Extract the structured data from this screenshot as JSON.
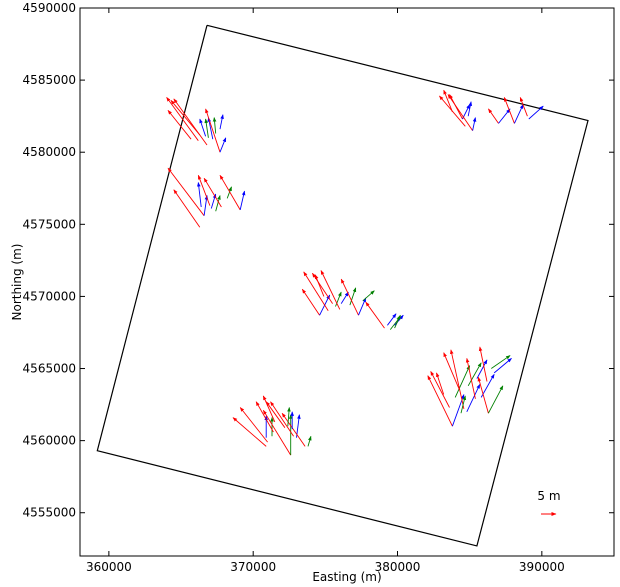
{
  "chart_data": {
    "type": "quiver",
    "xlabel": "Easting (m)",
    "ylabel": "Northing (m)",
    "xlim": [
      358000,
      395000
    ],
    "ylim": [
      4552000,
      4590000
    ],
    "xticks": [
      360000,
      370000,
      380000,
      390000
    ],
    "xtick_labels": [
      "360000",
      "370000",
      "380000",
      "390000"
    ],
    "yticks": [
      4555000,
      4560000,
      4565000,
      4570000,
      4575000,
      4580000,
      4585000,
      4590000
    ],
    "ytick_labels": [
      "4555000",
      "4560000",
      "4565000",
      "4570000",
      "4575000",
      "4580000",
      "4585000",
      "4590000"
    ],
    "grid": false,
    "boundary": {
      "x": [
        366800,
        393200,
        385500,
        359200,
        366800
      ],
      "y": [
        4588800,
        4582200,
        4552700,
        4559300,
        4588800
      ],
      "color": "#000000"
    },
    "scale_key": {
      "label": "5 m",
      "color": "#ff0000"
    },
    "colors": {
      "red": "#ff0000",
      "green": "#008000",
      "blue": "#0000ff"
    },
    "arrows": [
      {
        "x": 366800,
        "y": 4580500,
        "u": -2300,
        "v": 3200,
        "c": "red"
      },
      {
        "x": 366200,
        "y": 4580800,
        "u": -2200,
        "v": 3000,
        "c": "red"
      },
      {
        "x": 365700,
        "y": 4580900,
        "u": -1600,
        "v": 2000,
        "c": "red"
      },
      {
        "x": 366300,
        "y": 4581200,
        "u": -2000,
        "v": 2400,
        "c": "red"
      },
      {
        "x": 366700,
        "y": 4581100,
        "u": -400,
        "v": 1200,
        "c": "blue"
      },
      {
        "x": 366900,
        "y": 4581000,
        "u": -200,
        "v": 1300,
        "c": "green"
      },
      {
        "x": 367200,
        "y": 4580900,
        "u": -300,
        "v": 1500,
        "c": "blue"
      },
      {
        "x": 367400,
        "y": 4581300,
        "u": -100,
        "v": 1100,
        "c": "green"
      },
      {
        "x": 367700,
        "y": 4580000,
        "u": -1000,
        "v": 3000,
        "c": "red"
      },
      {
        "x": 367700,
        "y": 4580000,
        "u": 400,
        "v": 1000,
        "c": "blue"
      },
      {
        "x": 367700,
        "y": 4581600,
        "u": 200,
        "v": 1000,
        "c": "blue"
      },
      {
        "x": 366300,
        "y": 4574800,
        "u": -1800,
        "v": 2600,
        "c": "red"
      },
      {
        "x": 366600,
        "y": 4575600,
        "u": -2500,
        "v": 3300,
        "c": "red"
      },
      {
        "x": 366600,
        "y": 4575600,
        "u": 200,
        "v": 1400,
        "c": "blue"
      },
      {
        "x": 367000,
        "y": 4576300,
        "u": -800,
        "v": 2100,
        "c": "red"
      },
      {
        "x": 367100,
        "y": 4576100,
        "u": 300,
        "v": 1000,
        "c": "blue"
      },
      {
        "x": 367400,
        "y": 4575900,
        "u": 300,
        "v": 1100,
        "c": "green"
      },
      {
        "x": 367800,
        "y": 4576200,
        "u": -1200,
        "v": 2000,
        "c": "red"
      },
      {
        "x": 368200,
        "y": 4576800,
        "u": 300,
        "v": 800,
        "c": "green"
      },
      {
        "x": 369100,
        "y": 4576000,
        "u": -1400,
        "v": 2400,
        "c": "red"
      },
      {
        "x": 369100,
        "y": 4576000,
        "u": 300,
        "v": 1300,
        "c": "blue"
      },
      {
        "x": 366400,
        "y": 4576200,
        "u": -200,
        "v": 1700,
        "c": "blue"
      },
      {
        "x": 374600,
        "y": 4568700,
        "u": -1200,
        "v": 1800,
        "c": "red"
      },
      {
        "x": 374600,
        "y": 4568700,
        "u": 700,
        "v": 1400,
        "c": "blue"
      },
      {
        "x": 375200,
        "y": 4569000,
        "u": -1700,
        "v": 2700,
        "c": "red"
      },
      {
        "x": 375500,
        "y": 4569500,
        "u": -1400,
        "v": 2100,
        "c": "red"
      },
      {
        "x": 375700,
        "y": 4569300,
        "u": 400,
        "v": 1000,
        "c": "green"
      },
      {
        "x": 376000,
        "y": 4569100,
        "u": -1300,
        "v": 2700,
        "c": "red"
      },
      {
        "x": 376100,
        "y": 4569500,
        "u": 500,
        "v": 800,
        "c": "blue"
      },
      {
        "x": 376700,
        "y": 4569400,
        "u": 400,
        "v": 1200,
        "c": "green"
      },
      {
        "x": 377300,
        "y": 4568700,
        "u": -1200,
        "v": 2500,
        "c": "red"
      },
      {
        "x": 377300,
        "y": 4568700,
        "u": 500,
        "v": 1200,
        "c": "blue"
      },
      {
        "x": 377600,
        "y": 4569700,
        "u": 800,
        "v": 700,
        "c": "green"
      },
      {
        "x": 374900,
        "y": 4570000,
        "u": -600,
        "v": 1500,
        "c": "red"
      },
      {
        "x": 379100,
        "y": 4567800,
        "u": -1300,
        "v": 1800,
        "c": "red"
      },
      {
        "x": 379300,
        "y": 4568000,
        "u": 600,
        "v": 800,
        "c": "blue"
      },
      {
        "x": 379500,
        "y": 4567700,
        "u": 700,
        "v": 900,
        "c": "green"
      },
      {
        "x": 379800,
        "y": 4568000,
        "u": 600,
        "v": 700,
        "c": "blue"
      },
      {
        "x": 379800,
        "y": 4567800,
        "u": 400,
        "v": 900,
        "c": "green"
      },
      {
        "x": 384500,
        "y": 4582300,
        "u": -900,
        "v": 1700,
        "c": "red"
      },
      {
        "x": 384500,
        "y": 4582300,
        "u": 500,
        "v": 1000,
        "c": "blue"
      },
      {
        "x": 384700,
        "y": 4581800,
        "u": -1800,
        "v": 2100,
        "c": "red"
      },
      {
        "x": 384900,
        "y": 4582500,
        "u": 200,
        "v": 1000,
        "c": "blue"
      },
      {
        "x": 385200,
        "y": 4581500,
        "u": -1700,
        "v": 2500,
        "c": "red"
      },
      {
        "x": 385200,
        "y": 4581500,
        "u": 200,
        "v": 900,
        "c": "blue"
      },
      {
        "x": 383800,
        "y": 4582800,
        "u": -600,
        "v": 1500,
        "c": "red"
      },
      {
        "x": 387000,
        "y": 4582000,
        "u": -700,
        "v": 1000,
        "c": "red"
      },
      {
        "x": 387000,
        "y": 4582000,
        "u": 800,
        "v": 1000,
        "c": "blue"
      },
      {
        "x": 388100,
        "y": 4582000,
        "u": -700,
        "v": 1800,
        "c": "red"
      },
      {
        "x": 388100,
        "y": 4582000,
        "u": 600,
        "v": 1300,
        "c": "blue"
      },
      {
        "x": 389000,
        "y": 4582500,
        "u": -500,
        "v": 1300,
        "c": "red"
      },
      {
        "x": 389100,
        "y": 4582300,
        "u": 1000,
        "v": 900,
        "c": "blue"
      },
      {
        "x": 383600,
        "y": 4562300,
        "u": -1300,
        "v": 2500,
        "c": "red"
      },
      {
        "x": 383800,
        "y": 4561000,
        "u": -1700,
        "v": 3500,
        "c": "red"
      },
      {
        "x": 383800,
        "y": 4561000,
        "u": 800,
        "v": 2200,
        "c": "blue"
      },
      {
        "x": 384000,
        "y": 4563000,
        "u": 1000,
        "v": 2200,
        "c": "green"
      },
      {
        "x": 384300,
        "y": 4563500,
        "u": -1100,
        "v": 2600,
        "c": "red"
      },
      {
        "x": 384600,
        "y": 4562200,
        "u": -900,
        "v": 4100,
        "c": "red"
      },
      {
        "x": 384800,
        "y": 4562000,
        "u": 900,
        "v": 1900,
        "c": "blue"
      },
      {
        "x": 384900,
        "y": 4563800,
        "u": 900,
        "v": 1600,
        "c": "green"
      },
      {
        "x": 385400,
        "y": 4562900,
        "u": -600,
        "v": 2800,
        "c": "red"
      },
      {
        "x": 385500,
        "y": 4564300,
        "u": 700,
        "v": 1300,
        "c": "blue"
      },
      {
        "x": 385800,
        "y": 4563000,
        "u": 900,
        "v": 1600,
        "c": "blue"
      },
      {
        "x": 386200,
        "y": 4564100,
        "u": -500,
        "v": 2400,
        "c": "red"
      },
      {
        "x": 386300,
        "y": 4561900,
        "u": -700,
        "v": 2500,
        "c": "red"
      },
      {
        "x": 386300,
        "y": 4561900,
        "u": 1000,
        "v": 1900,
        "c": "green"
      },
      {
        "x": 386500,
        "y": 4565000,
        "u": 1300,
        "v": 900,
        "c": "green"
      },
      {
        "x": 386700,
        "y": 4564700,
        "u": 1200,
        "v": 1000,
        "c": "blue"
      },
      {
        "x": 383200,
        "y": 4563200,
        "u": -500,
        "v": 1500,
        "c": "red"
      },
      {
        "x": 384400,
        "y": 4561900,
        "u": 300,
        "v": 1200,
        "c": "green"
      },
      {
        "x": 370900,
        "y": 4559600,
        "u": -2300,
        "v": 2000,
        "c": "red"
      },
      {
        "x": 371000,
        "y": 4559900,
        "u": -1900,
        "v": 2400,
        "c": "red"
      },
      {
        "x": 370900,
        "y": 4560200,
        "u": 0,
        "v": 1500,
        "c": "blue"
      },
      {
        "x": 371300,
        "y": 4560300,
        "u": 0,
        "v": 1300,
        "c": "green"
      },
      {
        "x": 371400,
        "y": 4560600,
        "u": -1200,
        "v": 2100,
        "c": "red"
      },
      {
        "x": 371500,
        "y": 4561300,
        "u": -800,
        "v": 1800,
        "c": "red"
      },
      {
        "x": 372600,
        "y": 4559000,
        "u": -1900,
        "v": 3100,
        "c": "red"
      },
      {
        "x": 372600,
        "y": 4559000,
        "u": 0,
        "v": 2800,
        "c": "green"
      },
      {
        "x": 372800,
        "y": 4560300,
        "u": -1600,
        "v": 2400,
        "c": "red"
      },
      {
        "x": 373000,
        "y": 4560200,
        "u": 200,
        "v": 1600,
        "c": "blue"
      },
      {
        "x": 373600,
        "y": 4559600,
        "u": -1600,
        "v": 2300,
        "c": "red"
      },
      {
        "x": 373800,
        "y": 4559600,
        "u": 200,
        "v": 700,
        "c": "green"
      },
      {
        "x": 372200,
        "y": 4560900,
        "u": -1300,
        "v": 1800,
        "c": "red"
      },
      {
        "x": 372400,
        "y": 4561000,
        "u": 100,
        "v": 1300,
        "c": "green"
      },
      {
        "x": 372700,
        "y": 4560800,
        "u": 0,
        "v": 1200,
        "c": "blue"
      }
    ]
  }
}
